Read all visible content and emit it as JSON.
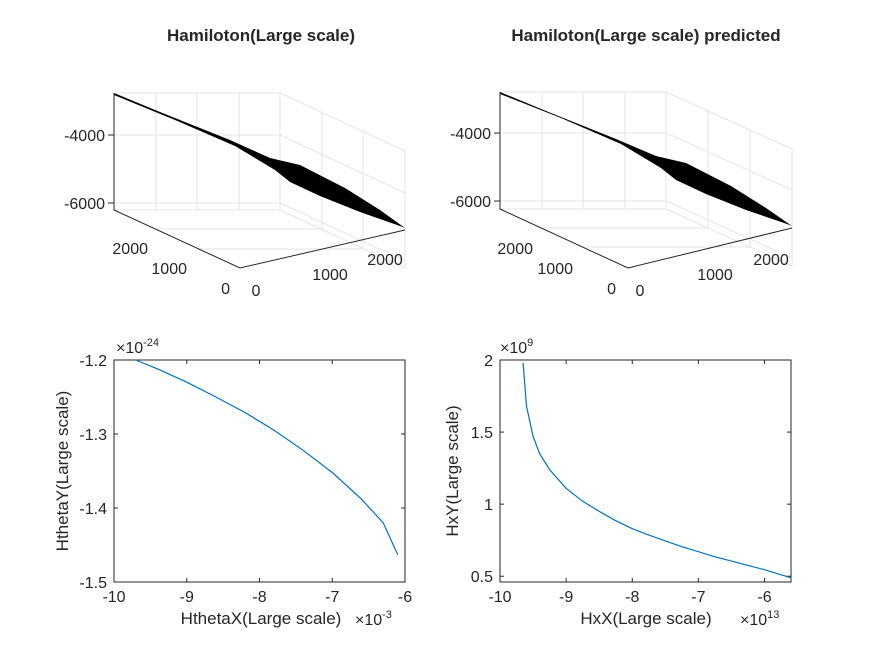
{
  "figure": {
    "charts": [
      {
        "type": "surface3d",
        "title": "Hamiloton(Large scale)",
        "z_ticks": [
          "-4000",
          "-6000"
        ],
        "y_ticks": [
          "2000",
          "1000",
          "0"
        ],
        "x_ticks": [
          "0",
          "1000",
          "2000"
        ],
        "surface_color": "#000000"
      },
      {
        "type": "surface3d",
        "title": "Hamiloton(Large scale) predicted",
        "z_ticks": [
          "-4000",
          "-6000"
        ],
        "y_ticks": [
          "2000",
          "1000",
          "0"
        ],
        "x_ticks": [
          "0",
          "1000",
          "2000"
        ],
        "surface_color": "#000000"
      }
    ]
  },
  "chart_data": [
    {
      "type": "surface",
      "title": "Hamiloton(Large scale)",
      "xlim": [
        0,
        2500
      ],
      "ylim": [
        0,
        2500
      ],
      "zlim": [
        -7000,
        -3000
      ],
      "grid": true
    },
    {
      "type": "surface",
      "title": "Hamiloton(Large scale) predicted",
      "xlim": [
        0,
        2500
      ],
      "ylim": [
        0,
        2500
      ],
      "zlim": [
        -7000,
        -3000
      ],
      "grid": true
    },
    {
      "type": "line",
      "title": "",
      "xlabel": "HthetaX(Large scale)",
      "ylabel": "HthetaY(Large scale)",
      "x_exponent": {
        "base": "×10",
        "power": "-3"
      },
      "y_exponent": {
        "base": "×10",
        "power": "-24"
      },
      "xlim": [
        -10,
        -6
      ],
      "ylim": [
        -1.5,
        -1.2
      ],
      "x_ticks": [
        -10,
        -9,
        -8,
        -7,
        -6
      ],
      "y_ticks": [
        -1.5,
        -1.4,
        -1.3,
        -1.2
      ],
      "x_tick_labels": [
        "-10",
        "-9",
        "-8",
        "-7",
        "-6"
      ],
      "y_tick_labels": [
        "-1.5",
        "-1.4",
        "-1.3",
        "-1.2"
      ],
      "series": [
        {
          "color": "#0072bd",
          "x": [
            -9.7,
            -9.4,
            -9.0,
            -8.6,
            -8.2,
            -7.8,
            -7.4,
            -7.0,
            -6.6,
            -6.3,
            -6.1
          ],
          "y": [
            -1.2,
            -1.212,
            -1.23,
            -1.25,
            -1.271,
            -1.295,
            -1.322,
            -1.352,
            -1.388,
            -1.42,
            -1.463
          ]
        }
      ]
    },
    {
      "type": "line",
      "title": "",
      "xlabel": "HxX(Large scale)",
      "ylabel": "HxY(Large scale)",
      "x_exponent": {
        "base": "×10",
        "power": "13"
      },
      "y_exponent": {
        "base": "×10",
        "power": "9"
      },
      "xlim": [
        -10,
        -5.6
      ],
      "ylim": [
        0.46,
        2.0
      ],
      "x_ticks": [
        -10,
        -9,
        -8,
        -7,
        -6
      ],
      "y_ticks": [
        0.5,
        1,
        1.5,
        2
      ],
      "x_tick_labels": [
        "-10",
        "-9",
        "-8",
        "-7",
        "-6"
      ],
      "y_tick_labels": [
        "0.5",
        "1",
        "1.5",
        "2"
      ],
      "series": [
        {
          "color": "#0072bd",
          "x": [
            -9.65,
            -9.6,
            -9.5,
            -9.4,
            -9.25,
            -9.0,
            -8.75,
            -8.5,
            -8.25,
            -8.0,
            -7.75,
            -7.5,
            -7.25,
            -7.0,
            -6.75,
            -6.5,
            -6.25,
            -6.0,
            -5.75,
            -5.6
          ],
          "y": [
            1.98,
            1.68,
            1.47,
            1.35,
            1.24,
            1.11,
            1.02,
            0.95,
            0.885,
            0.83,
            0.785,
            0.745,
            0.705,
            0.67,
            0.635,
            0.605,
            0.575,
            0.545,
            0.51,
            0.49
          ]
        }
      ]
    }
  ]
}
